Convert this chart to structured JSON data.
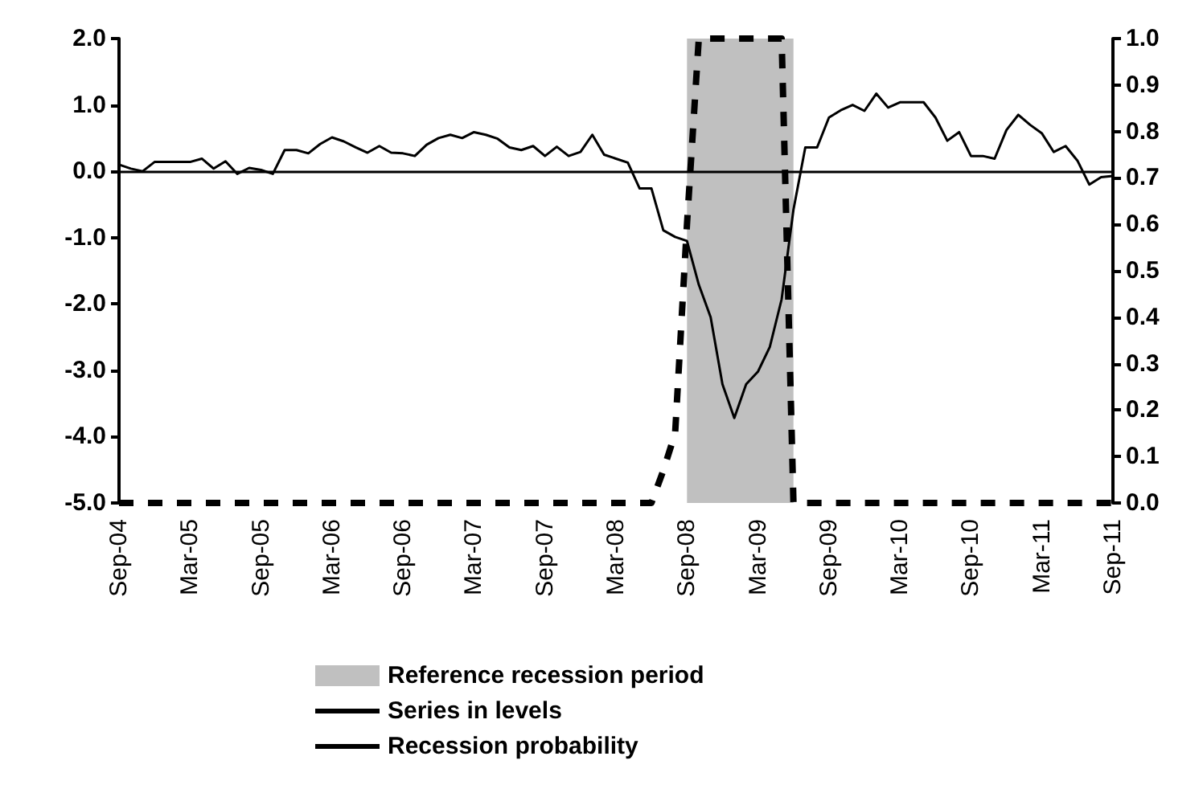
{
  "chart_data": {
    "type": "line",
    "x": [
      "2004-09",
      "2004-10",
      "2004-11",
      "2004-12",
      "2005-01",
      "2005-02",
      "2005-03",
      "2005-04",
      "2005-05",
      "2005-06",
      "2005-07",
      "2005-08",
      "2005-09",
      "2005-10",
      "2005-11",
      "2005-12",
      "2006-01",
      "2006-02",
      "2006-03",
      "2006-04",
      "2006-05",
      "2006-06",
      "2006-07",
      "2006-08",
      "2006-09",
      "2006-10",
      "2006-11",
      "2006-12",
      "2007-01",
      "2007-02",
      "2007-03",
      "2007-04",
      "2007-05",
      "2007-06",
      "2007-07",
      "2007-08",
      "2007-09",
      "2007-10",
      "2007-11",
      "2007-12",
      "2008-01",
      "2008-02",
      "2008-03",
      "2008-04",
      "2008-05",
      "2008-06",
      "2008-07",
      "2008-08",
      "2008-09",
      "2008-10",
      "2008-11",
      "2008-12",
      "2009-01",
      "2009-02",
      "2009-03",
      "2009-04",
      "2009-05",
      "2009-06",
      "2009-07",
      "2009-08",
      "2009-09",
      "2009-10",
      "2009-11",
      "2009-12",
      "2010-01",
      "2010-02",
      "2010-03",
      "2010-04",
      "2010-05",
      "2010-06",
      "2010-07",
      "2010-08",
      "2010-09",
      "2010-10",
      "2010-11",
      "2010-12",
      "2011-01",
      "2011-02",
      "2011-03",
      "2011-04",
      "2011-05",
      "2011-06",
      "2011-07",
      "2011-08",
      "2011-09"
    ],
    "series": [
      {
        "name": "Series in levels",
        "color": "#000000",
        "line_style": "solid",
        "values": [
          0.1,
          0.04,
          0.0,
          0.14,
          0.14,
          0.14,
          0.14,
          0.19,
          0.04,
          0.15,
          -0.04,
          0.05,
          0.02,
          -0.04,
          0.32,
          0.32,
          0.27,
          0.41,
          0.51,
          0.45,
          0.36,
          0.28,
          0.38,
          0.28,
          0.27,
          0.23,
          0.4,
          0.5,
          0.55,
          0.5,
          0.59,
          0.55,
          0.49,
          0.36,
          0.32,
          0.38,
          0.23,
          0.37,
          0.23,
          0.29,
          0.55,
          0.25,
          0.19,
          0.13,
          -0.26,
          -0.26,
          -0.89,
          -0.99,
          -1.05,
          -1.71,
          -2.2,
          -3.21,
          -3.72,
          -3.21,
          -3.02,
          -2.65,
          -1.93,
          -0.58,
          0.36,
          0.36,
          0.81,
          0.92,
          1.0,
          0.91,
          1.17,
          0.96,
          1.04,
          1.04,
          1.04,
          0.81,
          0.46,
          0.59,
          0.23,
          0.23,
          0.19,
          0.62,
          0.85,
          0.7,
          0.57,
          0.29,
          0.38,
          0.16,
          -0.2,
          -0.09,
          -0.07
        ]
      },
      {
        "name": "Recession probability",
        "color": "#000000",
        "line_style": "dashed",
        "axis": "y2",
        "values": [
          0,
          0,
          0,
          0,
          0,
          0,
          0,
          0,
          0,
          0,
          0,
          0,
          0,
          0,
          0,
          0,
          0,
          0,
          0,
          0,
          0,
          0,
          0,
          0,
          0,
          0,
          0,
          0,
          0,
          0,
          0,
          0,
          0,
          0,
          0,
          0,
          0,
          0,
          0,
          0,
          0,
          0,
          0,
          0,
          0,
          0,
          0.07,
          0.15,
          0.6,
          1,
          1,
          1,
          1,
          1,
          1,
          1,
          1,
          0,
          0,
          0,
          0,
          0,
          0,
          0,
          0,
          0,
          0,
          0,
          0,
          0,
          0,
          0,
          0,
          0,
          0,
          0,
          0,
          0,
          0,
          0,
          0,
          0,
          0,
          0,
          0
        ]
      }
    ],
    "bands": [
      {
        "axis": "x",
        "from": "2008-09",
        "to": "2009-06",
        "label": "Reference recession period",
        "color": "#c0c0c0"
      }
    ],
    "ref_lines": [
      {
        "axis": "y",
        "value": 0,
        "color": "#000000"
      }
    ],
    "xlim": [
      "2004-09",
      "2011-09"
    ],
    "xticks": [
      {
        "value": "2004-09",
        "label": "Sep-04"
      },
      {
        "value": "2005-03",
        "label": "Mar-05"
      },
      {
        "value": "2005-09",
        "label": "Sep-05"
      },
      {
        "value": "2006-03",
        "label": "Mar-06"
      },
      {
        "value": "2006-09",
        "label": "Sep-06"
      },
      {
        "value": "2007-03",
        "label": "Mar-07"
      },
      {
        "value": "2007-09",
        "label": "Sep-07"
      },
      {
        "value": "2008-03",
        "label": "Mar-08"
      },
      {
        "value": "2008-09",
        "label": "Sep-08"
      },
      {
        "value": "2009-03",
        "label": "Mar-09"
      },
      {
        "value": "2009-09",
        "label": "Sep-09"
      },
      {
        "value": "2010-03",
        "label": "Mar-10"
      },
      {
        "value": "2010-09",
        "label": "Sep-10"
      },
      {
        "value": "2011-03",
        "label": "Mar-11"
      },
      {
        "value": "2011-09",
        "label": "Sep-11"
      }
    ],
    "ylim": [
      -5,
      2
    ],
    "yticks": [
      {
        "value": -5,
        "label": "-5.0"
      },
      {
        "value": -4,
        "label": "-4.0"
      },
      {
        "value": -3,
        "label": "-3.0"
      },
      {
        "value": -2,
        "label": "-2.0"
      },
      {
        "value": -1,
        "label": "-1.0"
      },
      {
        "value": 0,
        "label": "0.0"
      },
      {
        "value": 1,
        "label": "1.0"
      },
      {
        "value": 2,
        "label": "2.0"
      }
    ],
    "y2lim": [
      0,
      1
    ],
    "y2ticks": [
      {
        "value": 0,
        "label": "0.0"
      },
      {
        "value": 0.1,
        "label": "0.1"
      },
      {
        "value": 0.2,
        "label": "0.2"
      },
      {
        "value": 0.3,
        "label": "0.3"
      },
      {
        "value": 0.4,
        "label": "0.4"
      },
      {
        "value": 0.5,
        "label": "0.5"
      },
      {
        "value": 0.6,
        "label": "0.6"
      },
      {
        "value": 0.7,
        "label": "0.7"
      },
      {
        "value": 0.8,
        "label": "0.8"
      },
      {
        "value": 0.9,
        "label": "0.9"
      },
      {
        "value": 1,
        "label": "1.0"
      }
    ],
    "marker": "none",
    "grid": false,
    "legend": "bottom"
  }
}
